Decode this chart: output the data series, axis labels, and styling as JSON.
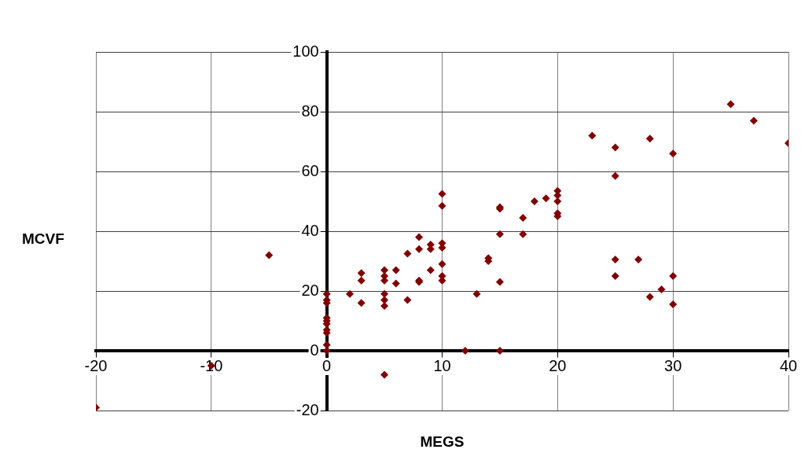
{
  "chart_data": {
    "type": "scatter",
    "xlabel": "MEGS",
    "ylabel": "MCVF",
    "marker": "diamond",
    "grid": true,
    "legend": false,
    "xlim": [
      -20,
      40
    ],
    "xticks": [
      -20,
      -10,
      0,
      10,
      20,
      30,
      40
    ],
    "ylim": [
      -20,
      100
    ],
    "yticks": [
      -20,
      0,
      20,
      40,
      60,
      80,
      100
    ],
    "series": [
      {
        "color": "#800000",
        "x": [
          -20,
          -10,
          -5,
          0,
          0,
          0,
          0,
          0,
          0,
          0,
          0,
          0,
          0,
          2,
          3,
          3,
          3,
          5,
          5,
          5,
          5,
          5,
          5,
          5,
          6,
          6,
          7,
          7,
          8,
          8,
          8,
          8,
          9,
          9,
          9,
          10,
          10,
          10,
          10,
          10,
          10,
          10,
          12,
          13,
          14,
          14,
          15,
          15,
          15,
          15,
          15,
          17,
          17,
          18,
          19,
          20,
          20,
          20,
          20,
          20,
          23,
          25,
          25,
          25,
          25,
          27,
          28,
          28,
          29,
          30,
          30,
          30,
          35,
          37,
          40
        ],
        "values": [
          -19,
          -5,
          32,
          19,
          17,
          16,
          11,
          10,
          9,
          7,
          6,
          2,
          0,
          19,
          26,
          23.5,
          16,
          27,
          25,
          23.5,
          19,
          17,
          15,
          -8,
          27,
          22.5,
          32.5,
          17,
          38,
          34,
          23.5,
          23,
          35.5,
          34,
          27,
          36,
          34.5,
          29,
          25,
          23.5,
          52.5,
          48.5,
          0,
          19,
          31,
          30,
          48,
          47.5,
          39,
          23,
          0,
          44.5,
          39,
          50,
          51,
          53.5,
          52,
          50,
          46,
          45,
          72,
          68,
          58.5,
          30.5,
          25,
          30.5,
          71,
          18,
          20.5,
          66,
          25,
          15.5,
          82.5,
          77,
          69.5
        ]
      }
    ]
  }
}
